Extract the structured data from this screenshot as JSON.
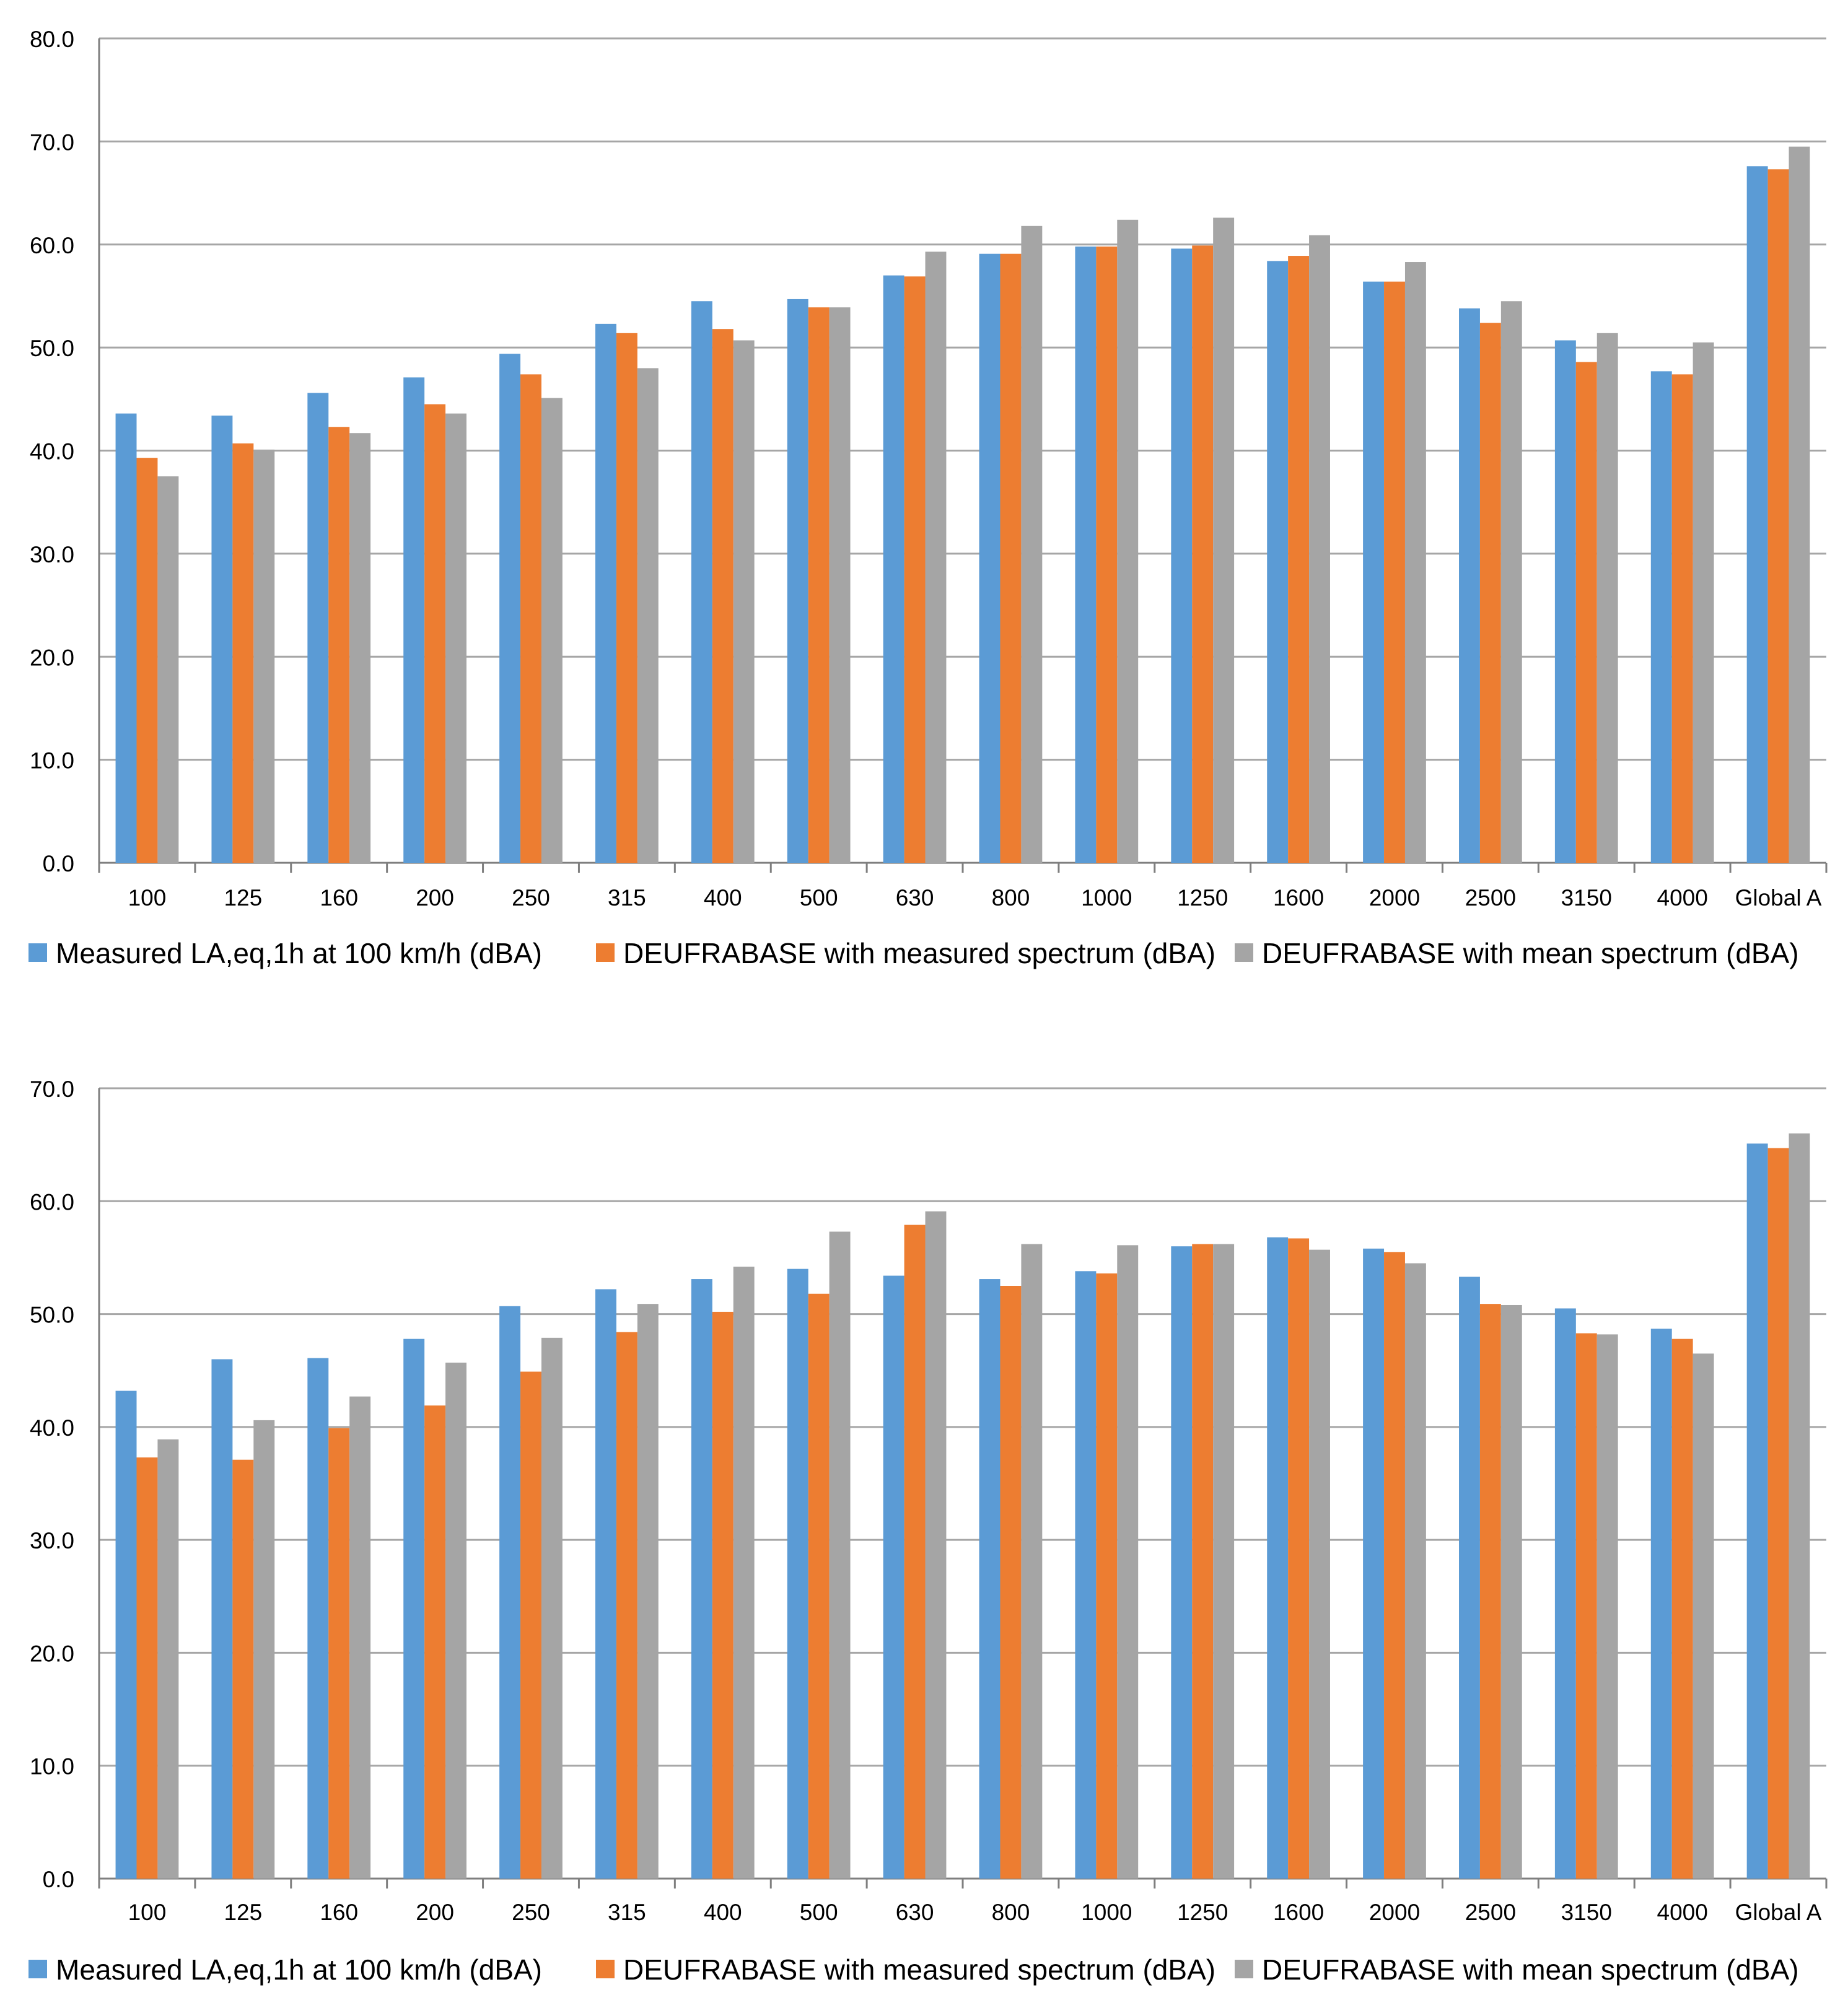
{
  "chart_data": [
    {
      "type": "bar",
      "categories": [
        "100",
        "125",
        "160",
        "200",
        "250",
        "315",
        "400",
        "500",
        "630",
        "800",
        "1000",
        "1250",
        "1600",
        "2000",
        "2500",
        "3150",
        "4000",
        "Global A"
      ],
      "ylim": [
        0,
        80
      ],
      "yticks": [
        "0.0",
        "10.0",
        "20.0",
        "30.0",
        "40.0",
        "50.0",
        "60.0",
        "70.0",
        "80.0"
      ],
      "grid": true,
      "legend_position": "bottom",
      "series": [
        {
          "name": "Measured LA,eq,1h at 100 km/h (dBA)",
          "color": "#5b9bd5",
          "values": [
            43.6,
            43.4,
            45.6,
            47.1,
            49.4,
            52.3,
            54.5,
            54.7,
            57.0,
            59.1,
            59.8,
            59.6,
            58.4,
            56.4,
            53.8,
            50.7,
            47.7,
            67.6
          ]
        },
        {
          "name": "DEUFRABASE with measured spectrum (dBA)",
          "color": "#ed7d31",
          "values": [
            39.3,
            40.7,
            42.3,
            44.5,
            47.4,
            51.4,
            51.8,
            53.9,
            56.9,
            59.1,
            59.8,
            59.9,
            58.9,
            56.4,
            52.4,
            48.6,
            47.4,
            67.3
          ]
        },
        {
          "name": "DEUFRABASE with mean spectrum (dBA)",
          "color": "#a5a5a5",
          "values": [
            37.5,
            40.1,
            41.7,
            43.6,
            45.1,
            48.0,
            50.7,
            53.9,
            59.3,
            61.8,
            62.4,
            62.6,
            60.9,
            58.3,
            54.5,
            51.4,
            50.5,
            69.5
          ]
        }
      ]
    },
    {
      "type": "bar",
      "categories": [
        "100",
        "125",
        "160",
        "200",
        "250",
        "315",
        "400",
        "500",
        "630",
        "800",
        "1000",
        "1250",
        "1600",
        "2000",
        "2500",
        "3150",
        "4000",
        "Global A"
      ],
      "ylim": [
        0,
        70
      ],
      "yticks": [
        "0.0",
        "10.0",
        "20.0",
        "30.0",
        "40.0",
        "50.0",
        "60.0",
        "70.0"
      ],
      "grid": true,
      "legend_position": "bottom",
      "series": [
        {
          "name": "Measured LA,eq,1h at 100 km/h (dBA)",
          "color": "#5b9bd5",
          "values": [
            43.2,
            46.0,
            46.1,
            47.8,
            50.7,
            52.2,
            53.1,
            54.0,
            53.4,
            53.1,
            53.8,
            56.0,
            56.8,
            55.8,
            53.3,
            50.5,
            48.7,
            65.1
          ]
        },
        {
          "name": "DEUFRABASE with measured spectrum (dBA)",
          "color": "#ed7d31",
          "values": [
            37.3,
            37.1,
            39.9,
            41.9,
            44.9,
            48.4,
            50.2,
            51.8,
            57.9,
            52.5,
            53.6,
            56.2,
            56.7,
            55.5,
            50.9,
            48.3,
            47.8,
            64.7
          ]
        },
        {
          "name": "DEUFRABASE with mean spectrum (dBA)",
          "color": "#a5a5a5",
          "values": [
            38.9,
            40.6,
            42.7,
            45.7,
            47.9,
            50.9,
            54.2,
            57.3,
            59.1,
            56.2,
            56.1,
            56.2,
            55.7,
            54.5,
            50.8,
            48.2,
            46.5,
            66.0
          ]
        }
      ]
    }
  ]
}
